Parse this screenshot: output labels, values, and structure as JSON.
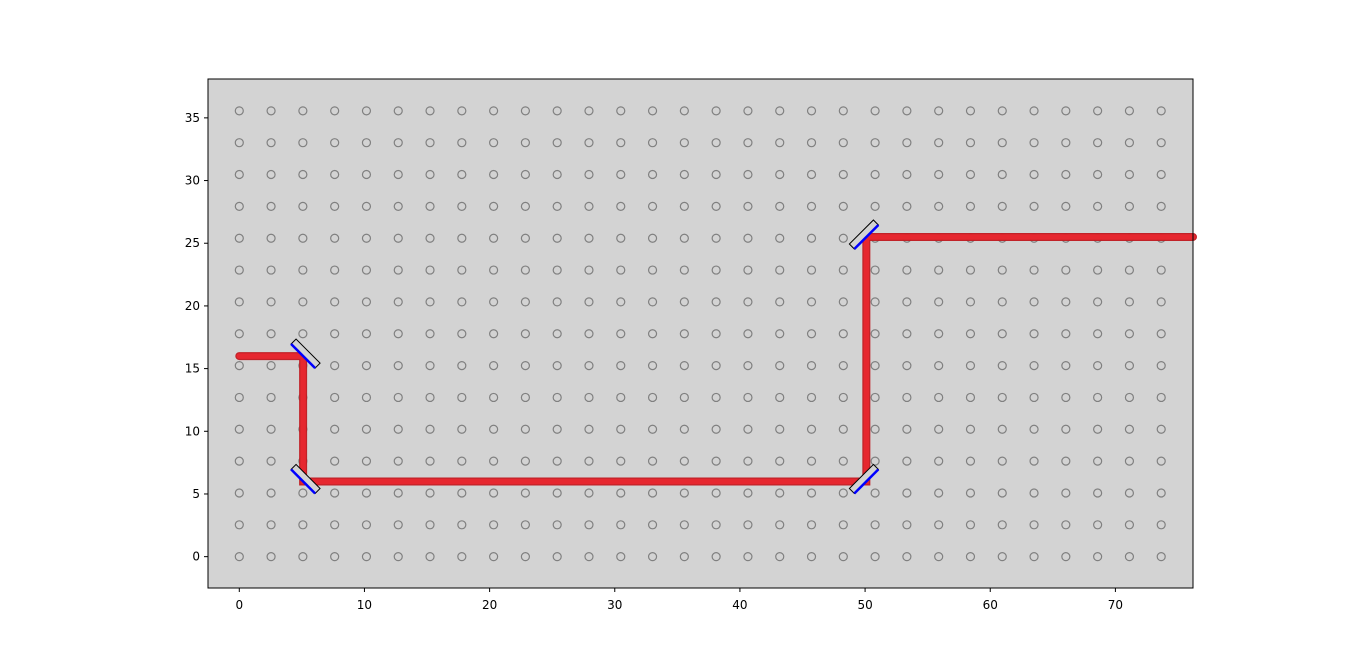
{
  "chart_data": {
    "type": "scatter",
    "title": "",
    "xlabel": "",
    "ylabel": "",
    "xlim": [
      -2.5,
      76.2
    ],
    "ylim": [
      -2.5,
      38.1
    ],
    "x_ticks": [
      0,
      10,
      20,
      30,
      40,
      50,
      60,
      70
    ],
    "y_ticks": [
      0,
      5,
      10,
      15,
      20,
      25,
      30,
      35
    ],
    "grid": false,
    "background_color": "#d3d3d3",
    "holes": {
      "x_start": 0,
      "x_step": 2.54,
      "x_count": 30,
      "y_start": 0,
      "y_step": 2.54,
      "y_count": 15,
      "color": "#808080"
    },
    "beam": {
      "color": "#e8282f",
      "path": [
        [
          0,
          16
        ],
        [
          5.1,
          16
        ],
        [
          5.1,
          6
        ],
        [
          50.1,
          6
        ],
        [
          50.1,
          25.5
        ],
        [
          76.2,
          25.5
        ]
      ]
    },
    "mirrors": [
      {
        "name": "mirror-1",
        "x": 5.1,
        "y": 16.0,
        "angle_deg": -45
      },
      {
        "name": "mirror-2",
        "x": 5.1,
        "y": 6.0,
        "angle_deg": -45
      },
      {
        "name": "mirror-3",
        "x": 50.1,
        "y": 6.0,
        "angle_deg": 45
      },
      {
        "name": "mirror-4",
        "x": 50.1,
        "y": 25.5,
        "angle_deg": 45
      }
    ],
    "mirror_colors": {
      "body": "#d3d3d3",
      "edge": "#000000",
      "reflective": "#0000ff"
    }
  }
}
